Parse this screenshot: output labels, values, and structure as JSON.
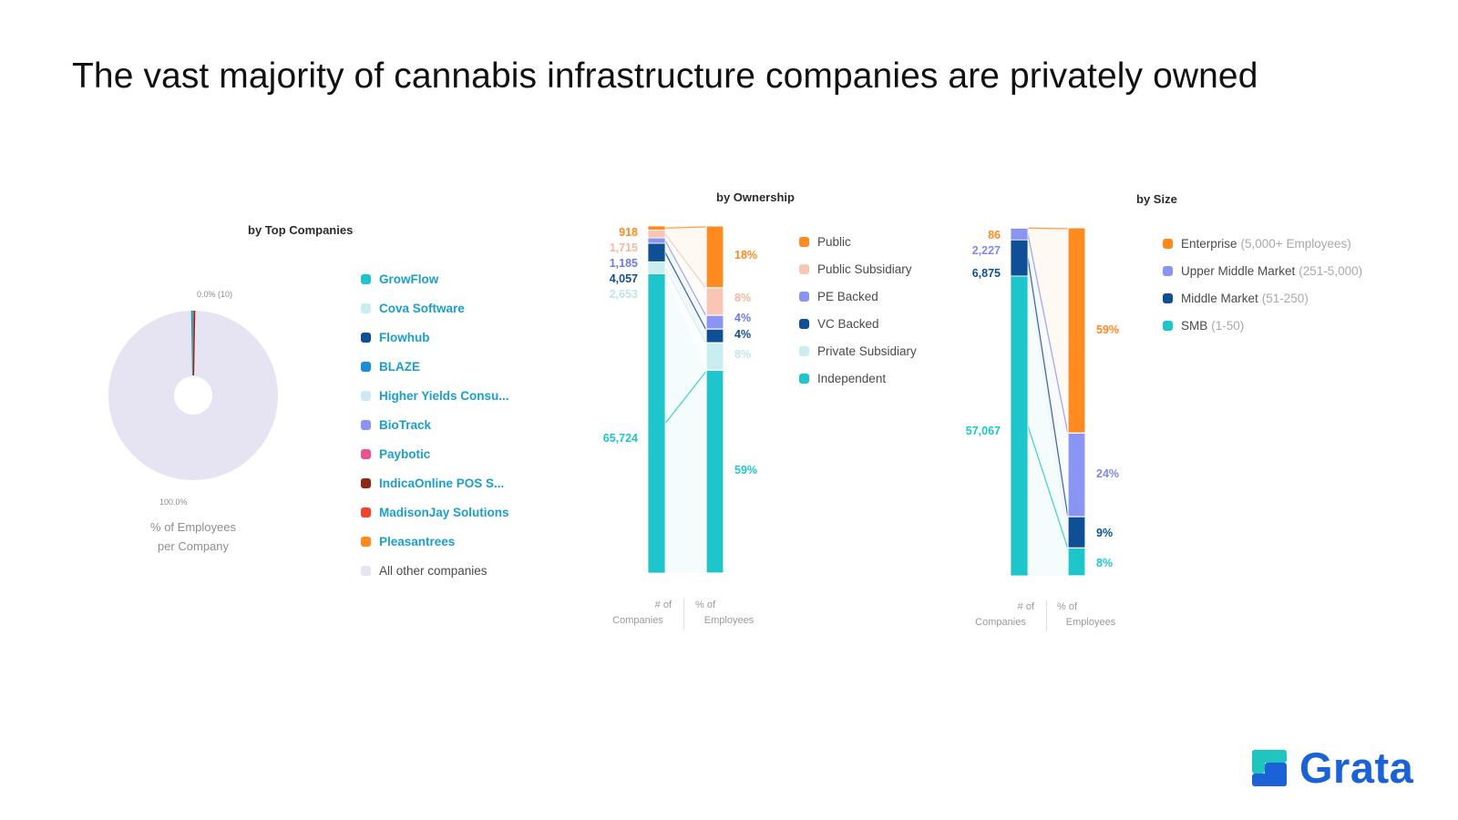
{
  "title": "The vast majority of cannabis infrastructure companies are privately owned",
  "colors": {
    "link": "#1a9fd0",
    "orange": "#ff8a1f",
    "peach": "#f9c5b5",
    "periwinkle": "#8a94f2",
    "navy": "#0f4f96",
    "lightcyan": "#c9edf0",
    "teal": "#1ec6cc",
    "pie_other": "#e6e3f3"
  },
  "top_companies": {
    "title": "by Top Companies",
    "caption_line1": "% of Employees",
    "caption_line2": "per Company",
    "small_label": "0.0% (10)",
    "big_label": "100.0%",
    "legend": [
      {
        "label": "GrowFlow",
        "color": "#1ec6cc",
        "style": "link"
      },
      {
        "label": "Cova Software",
        "color": "#c9edf0",
        "style": "link"
      },
      {
        "label": "Flowhub",
        "color": "#0f4f96",
        "style": "link"
      },
      {
        "label": "BLAZE",
        "color": "#1a8ed8",
        "style": "link"
      },
      {
        "label": "Higher Yields Consu...",
        "color": "#cfe8f8",
        "style": "link"
      },
      {
        "label": "BioTrack",
        "color": "#8a94f2",
        "style": "link"
      },
      {
        "label": "Paybotic",
        "color": "#e8548f",
        "style": "link"
      },
      {
        "label": "IndicaOnline POS S...",
        "color": "#8b2a14",
        "style": "link"
      },
      {
        "label": "MadisonJay Solutions",
        "color": "#f2432b",
        "style": "link"
      },
      {
        "label": "Pleasantrees",
        "color": "#ff8a1f",
        "style": "link"
      },
      {
        "label": "All other companies",
        "color": "#e6e3f3",
        "style": "plain"
      }
    ]
  },
  "ownership": {
    "title": "by Ownership",
    "axis_left_line1": "# of",
    "axis_left_line2": "Companies",
    "axis_right_line1": "% of",
    "axis_right_line2": "Employees",
    "legend": [
      {
        "label": "Public",
        "color": "#ff8a1f"
      },
      {
        "label": "Public Subsidiary",
        "color": "#f9c5b5"
      },
      {
        "label": "PE Backed",
        "color": "#8a94f2"
      },
      {
        "label": "VC Backed",
        "color": "#0f4f96"
      },
      {
        "label": "Private Subsidiary",
        "color": "#c9edf0"
      },
      {
        "label": "Independent",
        "color": "#1ec6cc"
      }
    ]
  },
  "size": {
    "title": "by Size",
    "axis_left_line1": "# of",
    "axis_left_line2": "Companies",
    "axis_right_line1": "% of",
    "axis_right_line2": "Employees",
    "legend": [
      {
        "label": "Enterprise",
        "note": "(5,000+ Employees)",
        "color": "#ff8a1f"
      },
      {
        "label": "Upper Middle Market",
        "note": "(251-5,000)",
        "color": "#8a94f2"
      },
      {
        "label": "Middle Market",
        "note": "(51-250)",
        "color": "#0f4f96"
      },
      {
        "label": "SMB",
        "note": "(1-50)",
        "color": "#1ec6cc"
      }
    ]
  },
  "chart_data": [
    {
      "type": "pie",
      "title": "by Top Companies",
      "categories": [
        "GrowFlow",
        "Cova Software",
        "Flowhub",
        "BLAZE",
        "Higher Yields Consu...",
        "BioTrack",
        "Paybotic",
        "IndicaOnline POS S...",
        "MadisonJay Solutions",
        "Pleasantrees",
        "All other companies"
      ],
      "values": [
        0.0,
        0.0,
        0.0,
        0.0,
        0.0,
        0.0,
        0.0,
        0.0,
        0.0,
        0.0,
        100.0
      ],
      "labels": [
        "0.0% (10)",
        "100.0%"
      ],
      "donut": true
    },
    {
      "type": "bar",
      "title": "by Ownership",
      "stacked": true,
      "categories": [
        "Public",
        "Public Subsidiary",
        "PE Backed",
        "VC Backed",
        "Private Subsidiary",
        "Independent"
      ],
      "series": [
        {
          "name": "# of Companies",
          "values": [
            918,
            1715,
            1185,
            4057,
            2653,
            65724
          ],
          "labels": [
            "918",
            "1,715",
            "1,185",
            "4,057",
            "2,653",
            "65,724"
          ]
        },
        {
          "name": "% of Employees",
          "values": [
            18,
            8,
            4,
            4,
            8,
            59
          ],
          "labels": [
            "18%",
            "8%",
            "4%",
            "4%",
            "8%",
            "59%"
          ]
        }
      ]
    },
    {
      "type": "bar",
      "title": "by Size",
      "stacked": true,
      "categories": [
        "Enterprise",
        "Upper Middle Market",
        "Middle Market",
        "SMB"
      ],
      "series": [
        {
          "name": "# of Companies",
          "values": [
            86,
            2227,
            6875,
            57067
          ],
          "labels": [
            "86",
            "2,227",
            "6,875",
            "57,067"
          ]
        },
        {
          "name": "% of Employees",
          "values": [
            59,
            24,
            9,
            8
          ],
          "labels": [
            "59%",
            "24%",
            "9%",
            "8%"
          ]
        }
      ]
    }
  ],
  "logo": {
    "text": "Grata"
  }
}
